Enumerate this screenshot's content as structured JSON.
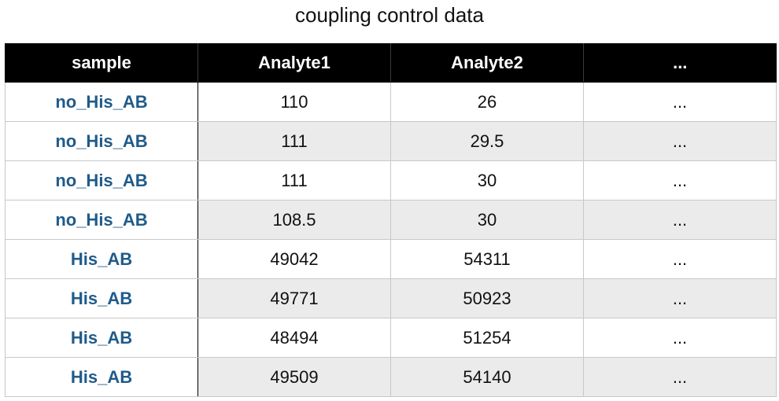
{
  "title": "coupling control data",
  "table": {
    "headers": [
      "sample",
      "Analyte1",
      "Analyte2",
      "..."
    ],
    "rows": [
      [
        "no_His_AB",
        "110",
        "26",
        "..."
      ],
      [
        "no_His_AB",
        "111",
        "29.5",
        "..."
      ],
      [
        "no_His_AB",
        "111",
        "30",
        "..."
      ],
      [
        "no_His_AB",
        "108.5",
        "30",
        "..."
      ],
      [
        "His_AB",
        "49042",
        "54311",
        "..."
      ],
      [
        "His_AB",
        "49771",
        "50923",
        "..."
      ],
      [
        "His_AB",
        "48494",
        "51254",
        "..."
      ],
      [
        "His_AB",
        "49509",
        "54140",
        "..."
      ]
    ]
  },
  "colors": {
    "header_bg": "#000000",
    "header_text": "#ffffff",
    "sample_text": "#1f5b8a",
    "shaded_row": "#ebebeb"
  }
}
